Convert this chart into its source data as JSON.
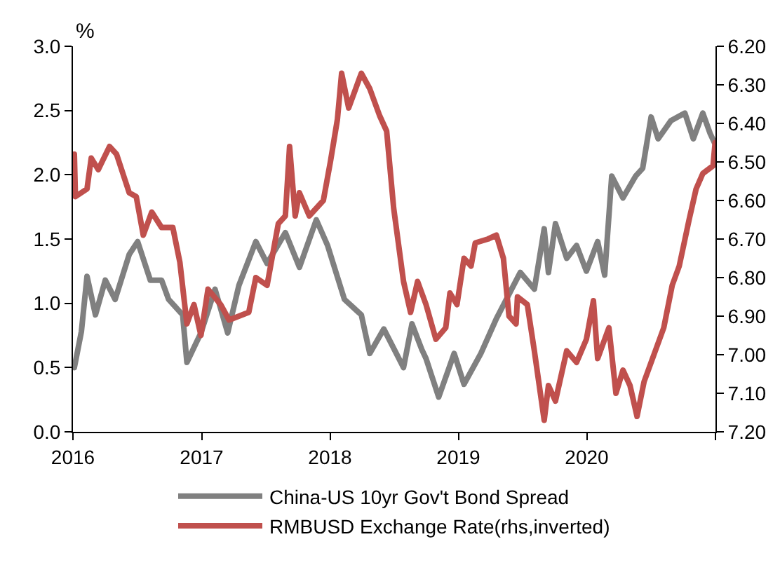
{
  "chart_data": {
    "type": "line",
    "ylabel": "%",
    "legend": "bottom",
    "line_style": "solid",
    "marker": "none",
    "xlim": [
      "2016-01-01",
      "2021-01-01"
    ],
    "xticks": [
      {
        "value": "2016-01-01",
        "label": "2016"
      },
      {
        "value": "2017-01-01",
        "label": "2017"
      },
      {
        "value": "2018-01-01",
        "label": "2018"
      },
      {
        "value": "2019-01-01",
        "label": "2019"
      },
      {
        "value": "2020-01-01",
        "label": "2020"
      },
      {
        "value": "2021-01-01",
        "label": null
      }
    ],
    "ylim": [
      0,
      3
    ],
    "yticks": [
      {
        "value": 0,
        "label": "0.0"
      },
      {
        "value": 0.5,
        "label": "0.5"
      },
      {
        "value": 1,
        "label": "1.0"
      },
      {
        "value": 1.5,
        "label": "1.5"
      },
      {
        "value": 2,
        "label": "2.0"
      },
      {
        "value": 2.5,
        "label": "2.5"
      },
      {
        "value": 3,
        "label": "3.0"
      }
    ],
    "y2lim": [
      7.2,
      6.2
    ],
    "y2ticks": [
      {
        "value": 6.2,
        "label": "6.20"
      },
      {
        "value": 6.3,
        "label": "6.30"
      },
      {
        "value": 6.4,
        "label": "6.40"
      },
      {
        "value": 6.5,
        "label": "6.50"
      },
      {
        "value": 6.6,
        "label": "6.60"
      },
      {
        "value": 6.7,
        "label": "6.70"
      },
      {
        "value": 6.8,
        "label": "6.80"
      },
      {
        "value": 6.9,
        "label": "6.90"
      },
      {
        "value": 7.0,
        "label": "7.00"
      },
      {
        "value": 7.1,
        "label": "7.10"
      },
      {
        "value": 7.2,
        "label": "7.20"
      }
    ],
    "series": [
      {
        "name": "China-US 10yr Gov't Bond Spread",
        "color": "#808080",
        "x": [
          "2016-01-05",
          "2016-01-25",
          "2016-02-10",
          "2016-03-05",
          "2016-04-02",
          "2016-04-30",
          "2016-06-09",
          "2016-07-03",
          "2016-08-08",
          "2016-09-09",
          "2016-09-29",
          "2016-11-08",
          "2016-11-20",
          "2016-12-30",
          "2017-02-08",
          "2017-03-16",
          "2017-04-17",
          "2017-06-04",
          "2017-07-06",
          "2017-08-27",
          "2017-10-06",
          "2017-11-23",
          "2017-12-25",
          "2018-02-11",
          "2018-03-31",
          "2018-04-24",
          "2018-06-03",
          "2018-07-29",
          "2018-08-22",
          "2018-09-19",
          "2018-10-01",
          "2018-11-06",
          "2018-12-20",
          "2019-01-17",
          "2019-03-06",
          "2019-04-19",
          "2019-06-26",
          "2019-08-05",
          "2019-09-02",
          "2019-09-14",
          "2019-10-04",
          "2019-11-05",
          "2019-12-03",
          "2019-12-31",
          "2020-02-01",
          "2020-02-21",
          "2020-03-12",
          "2020-04-13",
          "2020-05-19",
          "2020-06-08",
          "2020-07-02",
          "2020-07-22",
          "2020-08-27",
          "2020-10-06",
          "2020-10-30",
          "2020-11-26",
          "2020-12-17",
          "2020-12-29"
        ],
        "values": [
          0.5,
          0.78,
          1.21,
          0.91,
          1.18,
          1.03,
          1.38,
          1.48,
          1.18,
          1.18,
          1.03,
          0.91,
          0.54,
          0.77,
          1.11,
          0.77,
          1.14,
          1.48,
          1.31,
          1.55,
          1.28,
          1.65,
          1.45,
          1.03,
          0.91,
          0.61,
          0.8,
          0.5,
          0.84,
          0.64,
          0.57,
          0.27,
          0.61,
          0.37,
          0.61,
          0.88,
          1.24,
          1.11,
          1.58,
          1.24,
          1.62,
          1.35,
          1.45,
          1.25,
          1.48,
          1.22,
          1.99,
          1.82,
          1.99,
          2.05,
          2.45,
          2.28,
          2.42,
          2.48,
          2.28,
          2.48,
          2.32,
          2.25
        ]
      },
      {
        "name": "RMBUSD Exchange Rate(rhs,inverted)",
        "color": "#c0504d",
        "axis": "y2",
        "x": [
          "2016-01-05",
          "2016-01-08",
          "2016-02-10",
          "2016-02-22",
          "2016-03-13",
          "2016-04-14",
          "2016-05-04",
          "2016-06-09",
          "2016-06-29",
          "2016-07-19",
          "2016-08-12",
          "2016-09-09",
          "2016-10-11",
          "2016-10-31",
          "2016-11-20",
          "2016-12-10",
          "2016-12-30",
          "2017-01-19",
          "2017-02-24",
          "2017-03-20",
          "2017-05-15",
          "2017-06-04",
          "2017-07-06",
          "2017-08-07",
          "2017-08-27",
          "2017-09-08",
          "2017-09-24",
          "2017-10-06",
          "2017-11-03",
          "2017-12-13",
          "2018-01-02",
          "2018-01-22",
          "2018-02-03",
          "2018-02-23",
          "2018-03-31",
          "2018-04-24",
          "2018-05-22",
          "2018-06-11",
          "2018-07-01",
          "2018-07-29",
          "2018-08-18",
          "2018-09-07",
          "2018-10-01",
          "2018-10-29",
          "2018-11-26",
          "2018-12-08",
          "2018-12-28",
          "2019-01-17",
          "2019-02-06",
          "2019-02-18",
          "2019-03-26",
          "2019-04-19",
          "2019-05-09",
          "2019-05-25",
          "2019-06-14",
          "2019-06-18",
          "2019-07-16",
          "2019-08-05",
          "2019-09-02",
          "2019-09-14",
          "2019-10-04",
          "2019-11-05",
          "2019-12-03",
          "2019-12-31",
          "2020-01-20",
          "2020-02-01",
          "2020-03-04",
          "2020-03-24",
          "2020-04-13",
          "2020-05-03",
          "2020-05-23",
          "2020-06-12",
          "2020-07-10",
          "2020-08-07",
          "2020-08-31",
          "2020-09-20",
          "2020-10-18",
          "2020-11-07",
          "2020-11-26",
          "2020-12-25",
          "2020-12-31"
        ],
        "values": [
          6.48,
          6.59,
          6.57,
          6.49,
          6.52,
          6.46,
          6.48,
          6.58,
          6.59,
          6.69,
          6.63,
          6.67,
          6.67,
          6.76,
          6.92,
          6.87,
          6.95,
          6.83,
          6.87,
          6.91,
          6.89,
          6.8,
          6.82,
          6.66,
          6.64,
          6.46,
          6.64,
          6.58,
          6.64,
          6.6,
          6.5,
          6.39,
          6.27,
          6.36,
          6.27,
          6.31,
          6.38,
          6.42,
          6.62,
          6.81,
          6.89,
          6.81,
          6.87,
          6.96,
          6.93,
          6.84,
          6.87,
          6.75,
          6.77,
          6.71,
          6.7,
          6.69,
          6.75,
          6.9,
          6.92,
          6.85,
          6.87,
          6.99,
          7.17,
          7.08,
          7.12,
          6.99,
          7.02,
          6.96,
          6.86,
          7.01,
          6.93,
          7.1,
          7.04,
          7.08,
          7.16,
          7.07,
          7.0,
          6.93,
          6.82,
          6.77,
          6.65,
          6.57,
          6.53,
          6.51,
          6.45
        ]
      }
    ]
  }
}
